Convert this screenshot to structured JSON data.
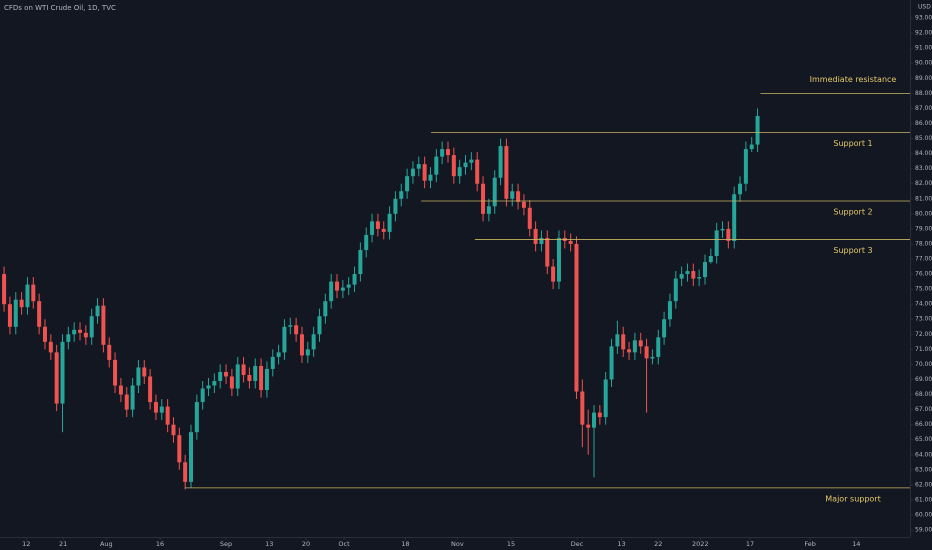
{
  "chart_data": {
    "type": "candlestick",
    "title": "CFDs on WTI Crude Oil, 1D, TVC",
    "y_unit": "USD",
    "up_color": "#26a69a",
    "down_color": "#ef5350",
    "level_color": "#c8b560",
    "open": [
      76.0,
      74.0,
      72.5,
      74.3,
      73.8,
      75.3,
      74.2,
      72.5,
      71.5,
      70.8,
      67.4,
      71.5,
      72.0,
      72.3,
      72.1,
      71.8,
      73.2,
      73.9,
      71.3,
      70.3,
      68.6,
      68.0,
      67.0,
      68.6,
      69.8,
      69.2,
      67.5,
      66.8,
      67.2,
      66.0,
      65.3,
      63.5,
      62.2,
      65.5,
      67.5,
      68.4,
      68.6,
      68.9,
      69.5,
      69.2,
      68.4,
      70.0,
      69.3,
      68.9,
      69.9,
      68.3,
      69.7,
      70.5,
      70.8,
      72.5,
      72.6,
      72.0,
      70.6,
      71.0,
      72.0,
      73.2,
      74.2,
      75.5,
      74.9,
      75.1,
      75.3,
      76.0,
      77.6,
      78.6,
      79.5,
      79.0,
      78.8,
      80.0,
      81.0,
      81.5,
      82.5,
      83.0,
      83.3,
      82.2,
      82.6,
      83.8,
      84.3,
      83.9,
      82.5,
      83.1,
      83.4,
      83.6,
      82.0,
      80.0,
      80.5,
      82.4,
      84.5,
      81.0,
      81.5,
      80.8,
      80.4,
      79.0,
      78.0,
      78.4,
      76.5,
      75.5,
      78.4,
      78.2,
      78.0,
      68.2,
      66.0,
      65.8,
      66.8,
      66.5,
      69.0,
      71.2,
      72.0,
      71.0,
      70.8,
      71.6,
      71.2,
      70.4,
      70.5,
      71.8,
      73.0,
      74.2,
      75.7,
      76.0,
      76.2,
      75.7,
      75.8,
      76.8,
      77.2,
      78.9,
      79.0,
      78.2,
      81.3,
      82.0,
      84.3,
      84.6
    ],
    "high": [
      76.5,
      74.5,
      74.8,
      74.8,
      75.8,
      75.8,
      74.7,
      73.0,
      72.0,
      71.3,
      72.0,
      72.5,
      72.8,
      72.8,
      72.6,
      73.7,
      74.4,
      74.4,
      71.8,
      70.8,
      69.1,
      68.5,
      69.1,
      70.3,
      70.3,
      69.7,
      68.0,
      67.7,
      67.7,
      66.5,
      65.8,
      64.0,
      66.0,
      68.0,
      68.9,
      69.1,
      69.4,
      70.0,
      70.0,
      69.7,
      70.5,
      70.5,
      69.8,
      70.4,
      70.4,
      70.2,
      71.0,
      71.3,
      73.0,
      73.1,
      73.1,
      72.5,
      71.5,
      72.5,
      73.7,
      74.7,
      76.0,
      76.0,
      75.6,
      75.8,
      76.5,
      78.1,
      79.1,
      80.0,
      80.0,
      79.5,
      80.5,
      81.5,
      82.0,
      83.0,
      83.5,
      83.8,
      83.8,
      83.1,
      84.3,
      84.8,
      84.8,
      84.4,
      83.6,
      83.9,
      84.1,
      84.1,
      82.5,
      81.0,
      82.9,
      85.0,
      85.0,
      82.0,
      82.0,
      81.3,
      80.9,
      79.5,
      78.9,
      78.9,
      77.0,
      78.9,
      78.9,
      78.7,
      78.5,
      69.0,
      67.0,
      67.3,
      67.3,
      69.5,
      71.7,
      72.9,
      72.5,
      71.5,
      72.1,
      72.1,
      71.7,
      71.0,
      72.3,
      73.5,
      74.7,
      76.2,
      76.5,
      76.7,
      76.7,
      76.3,
      77.3,
      77.7,
      79.4,
      79.5,
      79.5,
      81.8,
      82.5,
      84.8,
      85.1,
      87.0
    ],
    "low": [
      73.5,
      72.0,
      72.0,
      73.3,
      73.3,
      73.7,
      72.0,
      71.0,
      70.3,
      66.9,
      65.5,
      71.0,
      71.5,
      71.6,
      71.3,
      71.3,
      72.7,
      70.8,
      69.8,
      68.1,
      67.5,
      66.5,
      66.5,
      68.1,
      68.7,
      67.0,
      66.3,
      66.3,
      65.5,
      64.8,
      63.0,
      61.7,
      61.8,
      65.0,
      67.0,
      67.9,
      68.1,
      68.4,
      68.7,
      67.9,
      67.9,
      68.8,
      68.4,
      68.4,
      67.8,
      67.8,
      69.2,
      70.0,
      70.3,
      72.0,
      71.5,
      70.1,
      70.1,
      70.5,
      71.5,
      72.7,
      73.7,
      74.4,
      74.4,
      74.6,
      74.8,
      75.5,
      77.1,
      78.1,
      78.5,
      78.3,
      78.3,
      79.5,
      80.5,
      81.0,
      82.0,
      82.5,
      81.7,
      81.7,
      82.1,
      83.3,
      83.4,
      82.0,
      82.0,
      82.6,
      82.9,
      81.5,
      79.5,
      79.5,
      80.0,
      81.9,
      80.5,
      80.5,
      80.3,
      79.9,
      78.5,
      77.5,
      77.5,
      76.0,
      75.0,
      75.0,
      77.7,
      77.5,
      67.7,
      64.5,
      64.0,
      62.5,
      66.0,
      66.0,
      68.5,
      70.7,
      70.5,
      70.3,
      70.3,
      70.7,
      66.8,
      70.0,
      70.0,
      71.3,
      72.5,
      73.7,
      75.2,
      75.5,
      75.2,
      75.2,
      75.3,
      76.7,
      76.7,
      78.4,
      77.7,
      77.7,
      80.8,
      81.5,
      84.1,
      84.1
    ],
    "close": [
      74.0,
      72.5,
      74.3,
      73.8,
      75.3,
      74.2,
      72.5,
      71.5,
      70.8,
      67.4,
      71.5,
      72.0,
      72.3,
      72.1,
      71.8,
      73.2,
      73.9,
      71.3,
      70.3,
      68.6,
      68.0,
      67.0,
      68.6,
      69.8,
      69.2,
      67.5,
      66.8,
      67.2,
      66.0,
      65.3,
      63.5,
      62.2,
      65.5,
      67.5,
      68.4,
      68.6,
      68.9,
      69.5,
      69.2,
      68.4,
      70.0,
      69.3,
      68.9,
      69.9,
      68.3,
      69.7,
      70.5,
      70.8,
      72.5,
      72.6,
      72.0,
      70.6,
      71.0,
      72.0,
      73.2,
      74.2,
      75.5,
      74.9,
      75.1,
      75.3,
      76.0,
      77.6,
      78.6,
      79.5,
      79.0,
      78.8,
      80.0,
      81.0,
      81.5,
      82.5,
      83.0,
      83.3,
      82.2,
      82.6,
      83.8,
      84.3,
      83.9,
      82.5,
      83.1,
      83.4,
      83.6,
      82.0,
      80.0,
      80.5,
      82.4,
      84.5,
      81.0,
      81.5,
      80.8,
      80.4,
      79.0,
      78.0,
      78.4,
      76.5,
      75.5,
      78.4,
      78.2,
      78.0,
      68.2,
      66.0,
      65.8,
      66.8,
      66.5,
      69.0,
      71.2,
      72.0,
      71.0,
      70.8,
      71.6,
      71.2,
      70.4,
      70.5,
      71.8,
      73.0,
      74.2,
      75.7,
      76.0,
      76.2,
      75.7,
      75.8,
      76.8,
      77.2,
      78.9,
      79.0,
      78.2,
      81.3,
      82.0,
      84.3,
      84.6,
      86.5
    ],
    "levels": [
      {
        "label": "Immediate resistance",
        "value": 88.0,
        "x_start": 129.5
      },
      {
        "label": "Support 1",
        "value": 85.4,
        "x_start": 73.1
      },
      {
        "label": "Support 2",
        "value": 80.85,
        "x_start": 71.4
      },
      {
        "label": "Support 3",
        "value": 78.3,
        "x_start": 80.6
      },
      {
        "label": "Major support",
        "value": 61.8,
        "x_start": 31
      }
    ],
    "xlim": [
      -0.7,
      155.1
    ],
    "xticks": [
      {
        "value": 3.8,
        "label": "12"
      },
      {
        "value": 10.1,
        "label": "21"
      },
      {
        "value": 17.5,
        "label": "Aug"
      },
      {
        "value": 26.7,
        "label": "16"
      },
      {
        "value": 38,
        "label": "Sep"
      },
      {
        "value": 45.4,
        "label": "13"
      },
      {
        "value": 51.7,
        "label": "20"
      },
      {
        "value": 58.2,
        "label": "Oct"
      },
      {
        "value": 68.7,
        "label": "18"
      },
      {
        "value": 77.6,
        "label": "Nov"
      },
      {
        "value": 86.8,
        "label": "15"
      },
      {
        "value": 98.1,
        "label": "Dec"
      },
      {
        "value": 105.7,
        "label": "13"
      },
      {
        "value": 112,
        "label": "22"
      },
      {
        "value": 119.2,
        "label": "2022"
      },
      {
        "value": 127.7,
        "label": "17"
      },
      {
        "value": 138,
        "label": "Feb"
      },
      {
        "value": 145.9,
        "label": "14"
      }
    ],
    "ylim": [
      58.54,
      94.2
    ],
    "yticks": [
      {
        "value": 59,
        "label": "59.00"
      },
      {
        "value": 60,
        "label": "60.00"
      },
      {
        "value": 61,
        "label": "61.00"
      },
      {
        "value": 62,
        "label": "62.00"
      },
      {
        "value": 63,
        "label": "63.00"
      },
      {
        "value": 64,
        "label": "64.00"
      },
      {
        "value": 65,
        "label": "65.00"
      },
      {
        "value": 66,
        "label": "66.00"
      },
      {
        "value": 67,
        "label": "67.00"
      },
      {
        "value": 68,
        "label": "68.00"
      },
      {
        "value": 69,
        "label": "69.00"
      },
      {
        "value": 70,
        "label": "70.00"
      },
      {
        "value": 71,
        "label": "71.00"
      },
      {
        "value": 72,
        "label": "72.00"
      },
      {
        "value": 73,
        "label": "73.00"
      },
      {
        "value": 74,
        "label": "74.00"
      },
      {
        "value": 75,
        "label": "75.00"
      },
      {
        "value": 76,
        "label": "76.00"
      },
      {
        "value": 77,
        "label": "77.00"
      },
      {
        "value": 78,
        "label": "78.00"
      },
      {
        "value": 79,
        "label": "79.00"
      },
      {
        "value": 80,
        "label": "80.00"
      },
      {
        "value": 81,
        "label": "81.00"
      },
      {
        "value": 82,
        "label": "82.00"
      },
      {
        "value": 83,
        "label": "83.00"
      },
      {
        "value": 84,
        "label": "84.00"
      },
      {
        "value": 85,
        "label": "85.00"
      },
      {
        "value": 86,
        "label": "86.00"
      },
      {
        "value": 87,
        "label": "87.00"
      },
      {
        "value": 88,
        "label": "88.00"
      },
      {
        "value": 89,
        "label": "89.00"
      },
      {
        "value": 90,
        "label": "90.00"
      },
      {
        "value": 91,
        "label": "91.00"
      },
      {
        "value": 92,
        "label": "92.00"
      },
      {
        "value": 93,
        "label": "93.00"
      }
    ]
  }
}
